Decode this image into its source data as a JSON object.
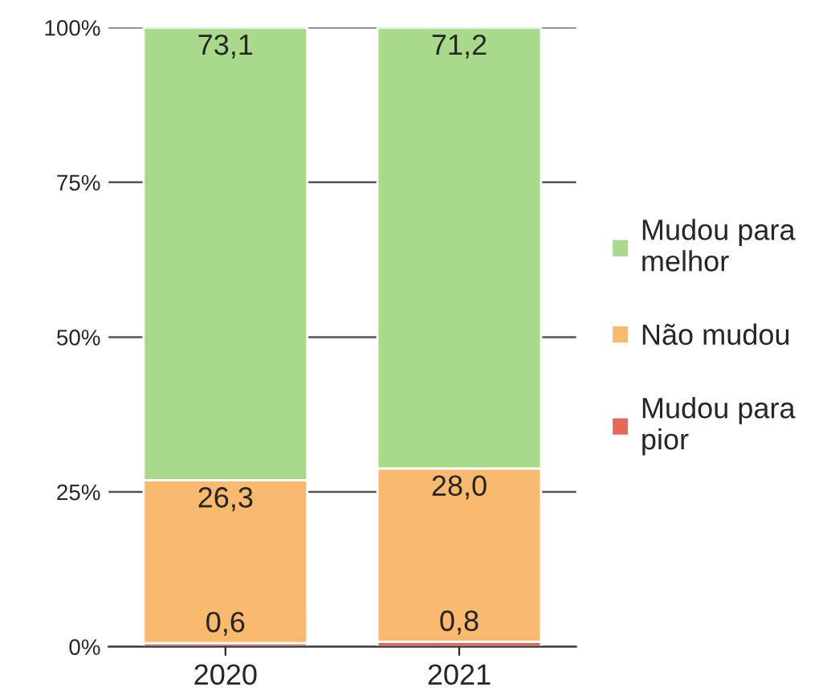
{
  "chart_data": {
    "type": "bar",
    "stacked": true,
    "categories": [
      "2020",
      "2021"
    ],
    "series": [
      {
        "name": "Mudou para pior",
        "color": "#e8665a",
        "values": [
          0.6,
          0.8
        ],
        "value_labels": [
          "0,6",
          "0,8"
        ]
      },
      {
        "name": "Não mudou",
        "color": "#f9b96e",
        "values": [
          26.3,
          28.0
        ],
        "value_labels": [
          "26,3",
          "28,0"
        ]
      },
      {
        "name": "Mudou para melhor",
        "color": "#a9d98a",
        "values": [
          73.1,
          71.2
        ],
        "value_labels": [
          "73,1",
          "71,2"
        ]
      }
    ],
    "ylim": [
      0,
      100
    ],
    "yticks": [
      {
        "value": 0,
        "label": "0%"
      },
      {
        "value": 25,
        "label": "25%"
      },
      {
        "value": 50,
        "label": "50%"
      },
      {
        "value": 75,
        "label": "75%"
      },
      {
        "value": 100,
        "label": "100%"
      }
    ],
    "grid": "y",
    "legend": "right"
  }
}
